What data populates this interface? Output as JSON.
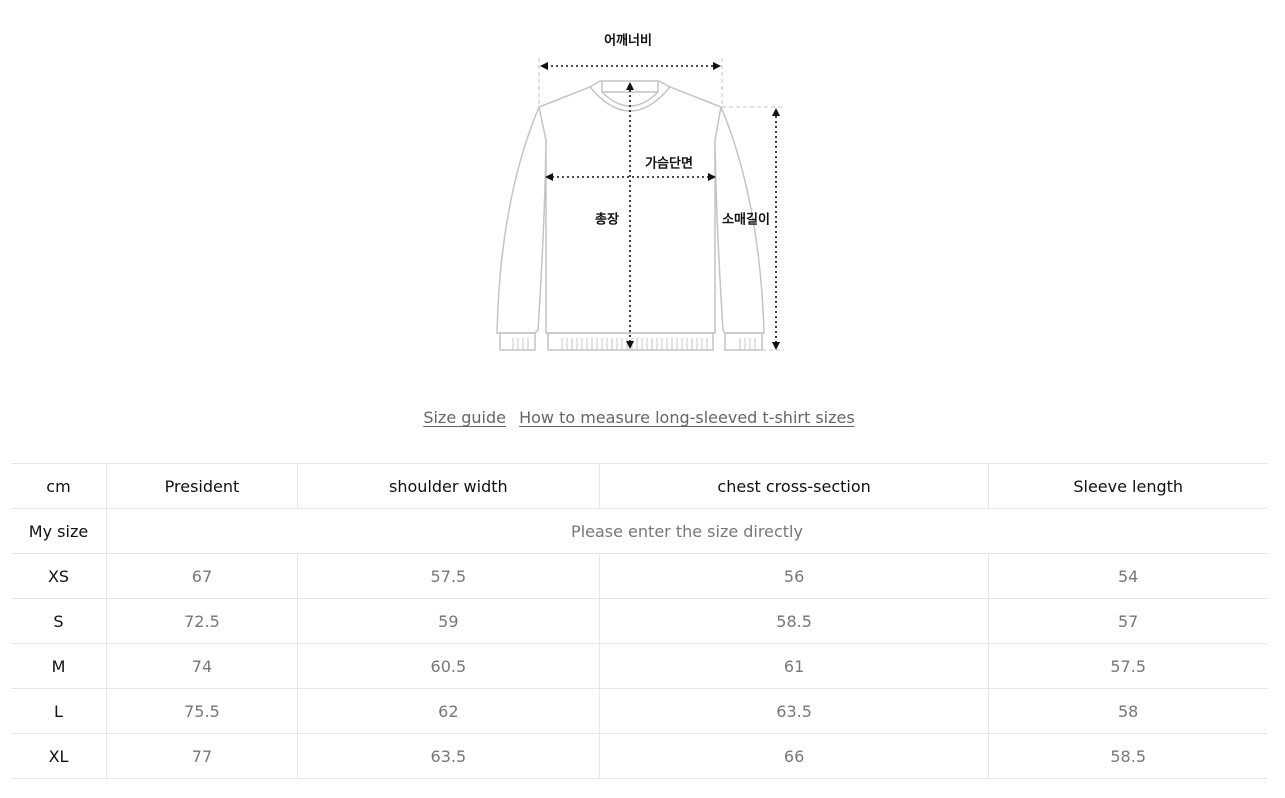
{
  "diagram": {
    "labels": {
      "shoulder": "어깨너비",
      "chest": "가슴단면",
      "length": "총장",
      "sleeve": "소매길이"
    },
    "line_color": "#c4c4c4",
    "arrow_color": "#111111"
  },
  "links": {
    "size_guide": "Size guide",
    "how_to_measure": "How to measure long-sleeved t-shirt sizes"
  },
  "table": {
    "headers": [
      "cm",
      "President",
      "shoulder width",
      "chest cross-section",
      "Sleeve length"
    ],
    "my_size": {
      "label": "My size",
      "placeholder": "Please enter the size directly"
    },
    "rows": [
      [
        "XS",
        "67",
        "57.5",
        "56",
        "54"
      ],
      [
        "S",
        "72.5",
        "59",
        "58.5",
        "57"
      ],
      [
        "M",
        "74",
        "60.5",
        "61",
        "57.5"
      ],
      [
        "L",
        "75.5",
        "62",
        "63.5",
        "58"
      ],
      [
        "XL",
        "77",
        "63.5",
        "66",
        "58.5"
      ]
    ]
  }
}
